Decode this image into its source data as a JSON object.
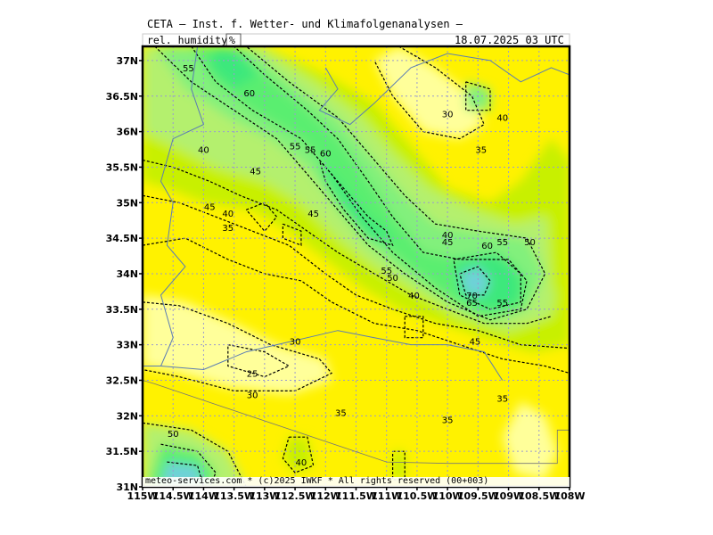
{
  "header": {
    "title": "CETA – Inst. f. Wetter- und Klimafolgenanalysen –",
    "variable": "rel. humidity",
    "unit": "%",
    "datetime": "18.07.2025 03 UTC"
  },
  "footer": {
    "copyright": "meteo-services.com * (c)2025 IWKF * All rights reserved (00+003)"
  },
  "axes": {
    "lat_labels": [
      "37N",
      "36.5N",
      "36N",
      "35.5N",
      "35N",
      "34.5N",
      "34N",
      "33.5N",
      "33N",
      "32.5N",
      "32N",
      "31.5N",
      "31N"
    ],
    "lon_labels": [
      "115W",
      "114.5W",
      "114W",
      "113.5W",
      "113W",
      "112.5W",
      "112W",
      "111.5W",
      "111W",
      "110.5W",
      "110W",
      "109.5W",
      "109W",
      "108.5W",
      "108W"
    ]
  },
  "contour_labels": [
    {
      "text": "55",
      "lon": -114.25,
      "lat": 36.9
    },
    {
      "text": "60",
      "lon": -113.25,
      "lat": 36.55
    },
    {
      "text": "30",
      "lon": -110.0,
      "lat": 36.25
    },
    {
      "text": "40",
      "lon": -109.1,
      "lat": 36.2
    },
    {
      "text": "40",
      "lon": -114.0,
      "lat": 35.75
    },
    {
      "text": "55",
      "lon": -112.5,
      "lat": 35.8
    },
    {
      "text": "55",
      "lon": -112.25,
      "lat": 35.75
    },
    {
      "text": "60",
      "lon": -112.0,
      "lat": 35.7
    },
    {
      "text": "35",
      "lon": -109.45,
      "lat": 35.75
    },
    {
      "text": "45",
      "lon": -113.15,
      "lat": 35.45
    },
    {
      "text": "45",
      "lon": -113.9,
      "lat": 34.95
    },
    {
      "text": "40",
      "lon": -113.6,
      "lat": 34.85
    },
    {
      "text": "45",
      "lon": -112.2,
      "lat": 34.85
    },
    {
      "text": "35",
      "lon": -113.6,
      "lat": 34.65
    },
    {
      "text": "40",
      "lon": -110.0,
      "lat": 34.55
    },
    {
      "text": "45",
      "lon": -110.0,
      "lat": 34.45
    },
    {
      "text": "55",
      "lon": -109.1,
      "lat": 34.45
    },
    {
      "text": "50",
      "lon": -108.65,
      "lat": 34.45
    },
    {
      "text": "60",
      "lon": -109.35,
      "lat": 34.4
    },
    {
      "text": "55",
      "lon": -111.0,
      "lat": 34.05
    },
    {
      "text": "50",
      "lon": -110.9,
      "lat": 33.95
    },
    {
      "text": "70",
      "lon": -109.6,
      "lat": 33.7
    },
    {
      "text": "65",
      "lon": -109.6,
      "lat": 33.6
    },
    {
      "text": "55",
      "lon": -109.1,
      "lat": 33.6
    },
    {
      "text": "40",
      "lon": -110.55,
      "lat": 33.7
    },
    {
      "text": "45",
      "lon": -109.55,
      "lat": 33.05
    },
    {
      "text": "30",
      "lon": -112.5,
      "lat": 33.05
    },
    {
      "text": "25",
      "lon": -113.2,
      "lat": 32.6
    },
    {
      "text": "30",
      "lon": -113.2,
      "lat": 32.3
    },
    {
      "text": "35",
      "lon": -109.1,
      "lat": 32.25
    },
    {
      "text": "35",
      "lon": -111.75,
      "lat": 32.05
    },
    {
      "text": "35",
      "lon": -110.0,
      "lat": 31.95
    },
    {
      "text": "50",
      "lon": -114.5,
      "lat": 31.75
    },
    {
      "text": "40",
      "lon": -112.4,
      "lat": 31.35
    }
  ],
  "colors": {
    "h25": "#ffff9a",
    "h30": "#ffff33",
    "h35": "#fff200",
    "h40": "#c8f000",
    "h45": "#b4f06e",
    "h50": "#82f07c",
    "h55": "#5aee70",
    "h60": "#3ee87c",
    "h70": "#6ed2d8",
    "contour": "#000000",
    "border": "#5a7cb4",
    "grid": "#9a9ad0"
  }
}
